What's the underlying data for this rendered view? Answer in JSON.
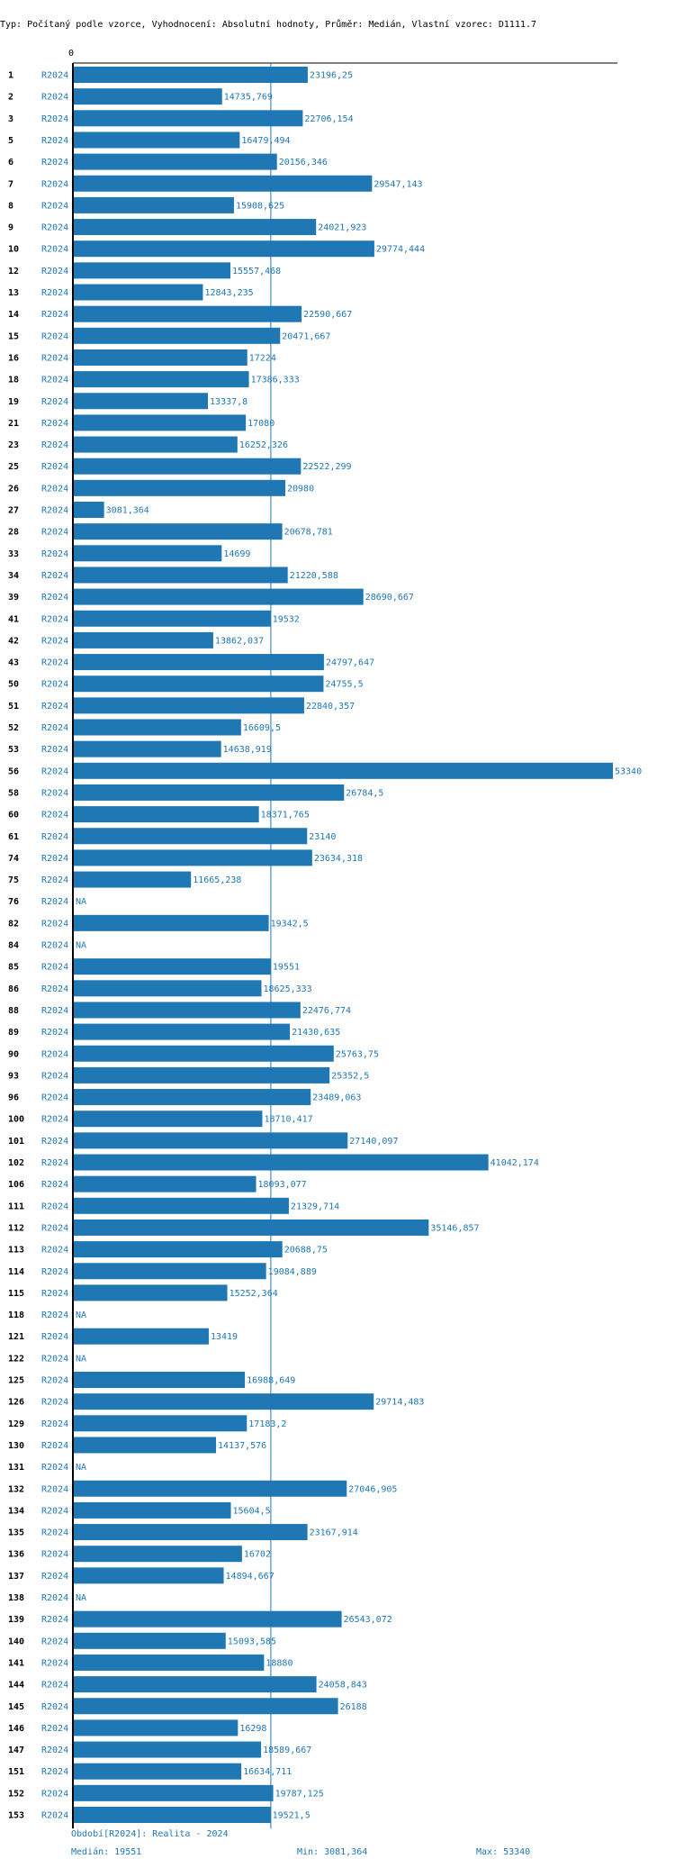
{
  "chart_data": {
    "type": "bar",
    "orientation": "horizontal",
    "title": "Typ: Počítaný podle vzorce, Vyhodnocení: Absolutní hodnoty, Průměr: Medián, Vlastní vzorec: D1111.7",
    "axis_zero_label": "0",
    "series_label": "R2024",
    "na_label": "NA",
    "xlim": [
      0,
      53340
    ],
    "median": 19551,
    "rows": [
      {
        "id": "1",
        "value": 23196.25,
        "label": "23196,25"
      },
      {
        "id": "2",
        "value": 14735.769,
        "label": "14735,769"
      },
      {
        "id": "3",
        "value": 22706.154,
        "label": "22706,154"
      },
      {
        "id": "5",
        "value": 16479.494,
        "label": "16479,494"
      },
      {
        "id": "6",
        "value": 20156.346,
        "label": "20156,346"
      },
      {
        "id": "7",
        "value": 29547.143,
        "label": "29547,143"
      },
      {
        "id": "8",
        "value": 15908.625,
        "label": "15908,625"
      },
      {
        "id": "9",
        "value": 24021.923,
        "label": "24021,923"
      },
      {
        "id": "10",
        "value": 29774.444,
        "label": "29774,444"
      },
      {
        "id": "12",
        "value": 15557.468,
        "label": "15557,468"
      },
      {
        "id": "13",
        "value": 12843.235,
        "label": "12843,235"
      },
      {
        "id": "14",
        "value": 22590.667,
        "label": "22590,667"
      },
      {
        "id": "15",
        "value": 20471.667,
        "label": "20471,667"
      },
      {
        "id": "16",
        "value": 17224,
        "label": "17224"
      },
      {
        "id": "18",
        "value": 17386.333,
        "label": "17386,333"
      },
      {
        "id": "19",
        "value": 13337.8,
        "label": "13337,8"
      },
      {
        "id": "21",
        "value": 17080,
        "label": "17080"
      },
      {
        "id": "23",
        "value": 16252.326,
        "label": "16252,326"
      },
      {
        "id": "25",
        "value": 22522.299,
        "label": "22522,299"
      },
      {
        "id": "26",
        "value": 20980,
        "label": "20980"
      },
      {
        "id": "27",
        "value": 3081.364,
        "label": "3081,364"
      },
      {
        "id": "28",
        "value": 20678.781,
        "label": "20678,781"
      },
      {
        "id": "33",
        "value": 14699,
        "label": "14699"
      },
      {
        "id": "34",
        "value": 21220.588,
        "label": "21220,588"
      },
      {
        "id": "39",
        "value": 28690.667,
        "label": "28690,667"
      },
      {
        "id": "41",
        "value": 19532,
        "label": "19532"
      },
      {
        "id": "42",
        "value": 13862.037,
        "label": "13862,037"
      },
      {
        "id": "43",
        "value": 24797.647,
        "label": "24797,647"
      },
      {
        "id": "50",
        "value": 24755.5,
        "label": "24755,5"
      },
      {
        "id": "51",
        "value": 22840.357,
        "label": "22840,357"
      },
      {
        "id": "52",
        "value": 16609.5,
        "label": "16609,5"
      },
      {
        "id": "53",
        "value": 14638.919,
        "label": "14638,919"
      },
      {
        "id": "56",
        "value": 53340,
        "label": "53340"
      },
      {
        "id": "58",
        "value": 26784.5,
        "label": "26784,5"
      },
      {
        "id": "60",
        "value": 18371.765,
        "label": "18371,765"
      },
      {
        "id": "61",
        "value": 23140,
        "label": "23140"
      },
      {
        "id": "74",
        "value": 23634.318,
        "label": "23634,318"
      },
      {
        "id": "75",
        "value": 11665.238,
        "label": "11665,238"
      },
      {
        "id": "76",
        "value": null,
        "label": "NA"
      },
      {
        "id": "82",
        "value": 19342.5,
        "label": "19342,5"
      },
      {
        "id": "84",
        "value": null,
        "label": "NA"
      },
      {
        "id": "85",
        "value": 19551,
        "label": "19551"
      },
      {
        "id": "86",
        "value": 18625.333,
        "label": "18625,333"
      },
      {
        "id": "88",
        "value": 22476.774,
        "label": "22476,774"
      },
      {
        "id": "89",
        "value": 21430.635,
        "label": "21430,635"
      },
      {
        "id": "90",
        "value": 25763.75,
        "label": "25763,75"
      },
      {
        "id": "93",
        "value": 25352.5,
        "label": "25352,5"
      },
      {
        "id": "96",
        "value": 23489.063,
        "label": "23489,063"
      },
      {
        "id": "100",
        "value": 18710.417,
        "label": "18710,417"
      },
      {
        "id": "101",
        "value": 27140.097,
        "label": "27140,097"
      },
      {
        "id": "102",
        "value": 41042.174,
        "label": "41042,174"
      },
      {
        "id": "106",
        "value": 18093.077,
        "label": "18093,077"
      },
      {
        "id": "111",
        "value": 21329.714,
        "label": "21329,714"
      },
      {
        "id": "112",
        "value": 35146.857,
        "label": "35146,857"
      },
      {
        "id": "113",
        "value": 20688.75,
        "label": "20688,75"
      },
      {
        "id": "114",
        "value": 19084.889,
        "label": "19084,889"
      },
      {
        "id": "115",
        "value": 15252.364,
        "label": "15252,364"
      },
      {
        "id": "118",
        "value": null,
        "label": "NA"
      },
      {
        "id": "121",
        "value": 13419,
        "label": "13419"
      },
      {
        "id": "122",
        "value": null,
        "label": "NA"
      },
      {
        "id": "125",
        "value": 16988.649,
        "label": "16988,649"
      },
      {
        "id": "126",
        "value": 29714.483,
        "label": "29714,483"
      },
      {
        "id": "129",
        "value": 17183.2,
        "label": "17183,2"
      },
      {
        "id": "130",
        "value": 14137.576,
        "label": "14137,576"
      },
      {
        "id": "131",
        "value": null,
        "label": "NA"
      },
      {
        "id": "132",
        "value": 27046.905,
        "label": "27046,905"
      },
      {
        "id": "134",
        "value": 15604.5,
        "label": "15604,5"
      },
      {
        "id": "135",
        "value": 23167.914,
        "label": "23167,914"
      },
      {
        "id": "136",
        "value": 16702,
        "label": "16702"
      },
      {
        "id": "137",
        "value": 14894.667,
        "label": "14894,667"
      },
      {
        "id": "138",
        "value": null,
        "label": "NA"
      },
      {
        "id": "139",
        "value": 26543.072,
        "label": "26543,072"
      },
      {
        "id": "140",
        "value": 15093.585,
        "label": "15093,585"
      },
      {
        "id": "141",
        "value": 18880,
        "label": "18880"
      },
      {
        "id": "144",
        "value": 24058.843,
        "label": "24058,843"
      },
      {
        "id": "145",
        "value": 26188,
        "label": "26188"
      },
      {
        "id": "146",
        "value": 16298,
        "label": "16298"
      },
      {
        "id": "147",
        "value": 18589.667,
        "label": "18589,667"
      },
      {
        "id": "151",
        "value": 16634.711,
        "label": "16634,711"
      },
      {
        "id": "152",
        "value": 19787.125,
        "label": "19787,125"
      },
      {
        "id": "153",
        "value": 19521.5,
        "label": "19521,5"
      }
    ]
  },
  "footer": {
    "period": "Období[R2024]: Realita - 2024",
    "median": "Medián: 19551",
    "min": "Min: 3081,364",
    "max": "Max: 53340"
  },
  "colors": {
    "bar": "#1f77b4",
    "text_series": "#1f77b4",
    "axis": "#000000"
  }
}
